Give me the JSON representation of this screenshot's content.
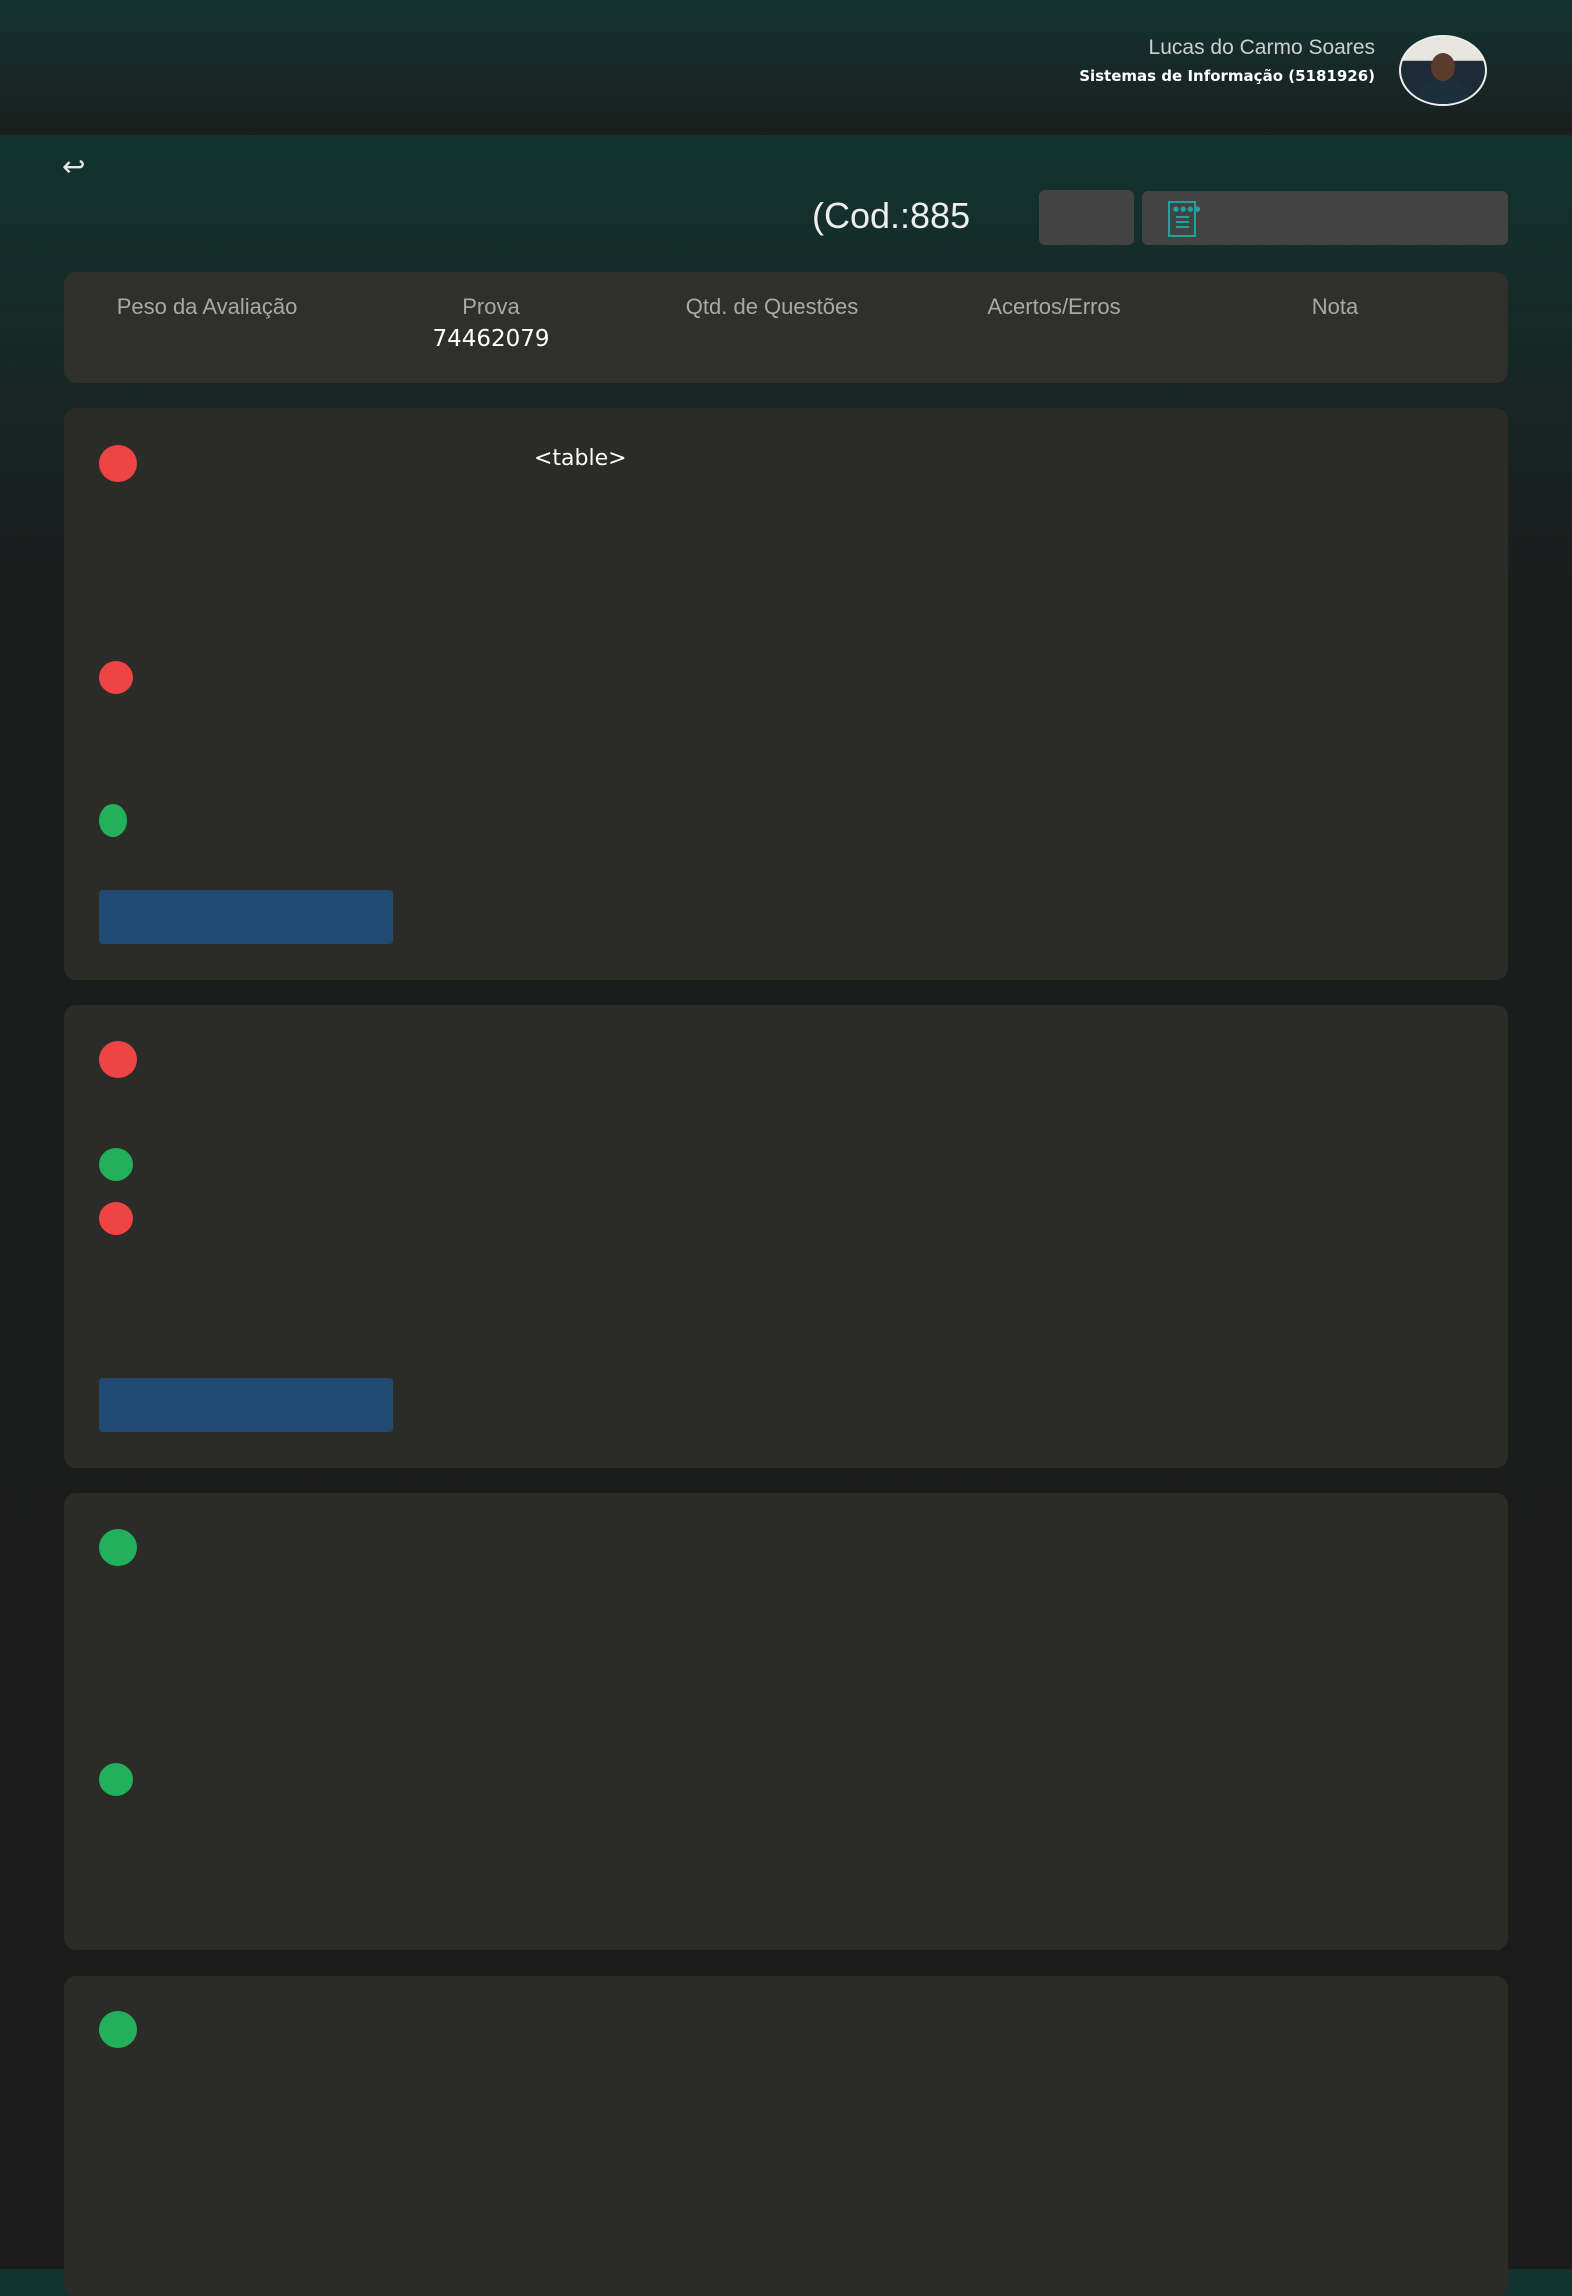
{
  "header": {
    "user_name": "Lucas do Carmo Soares",
    "course": "Sistemas de Informação (5181926)"
  },
  "nav": {
    "back_icon": "↩"
  },
  "exam": {
    "code_text": "(Cod.:885"
  },
  "summary": {
    "columns": [
      {
        "label": "Peso da Avaliação",
        "value": ""
      },
      {
        "label": "Prova",
        "value": "74462079"
      },
      {
        "label": "Qtd. de Questões",
        "value": ""
      },
      {
        "label": "Acertos/Erros",
        "value": ""
      },
      {
        "label": "Nota",
        "value": ""
      }
    ]
  },
  "questions": [
    {
      "raw_text": "<table>",
      "answer_status": [
        "wrong",
        "wrong",
        "correct"
      ]
    },
    {
      "answer_status": [
        "wrong",
        "correct",
        "wrong"
      ]
    },
    {
      "answer_status": [
        "correct",
        "correct"
      ]
    },
    {
      "answer_status": [
        "correct"
      ]
    }
  ],
  "colors": {
    "wrong": "#ef4444",
    "correct": "#22b05a",
    "button": "#214a73",
    "accent": "#1fa3a0"
  }
}
